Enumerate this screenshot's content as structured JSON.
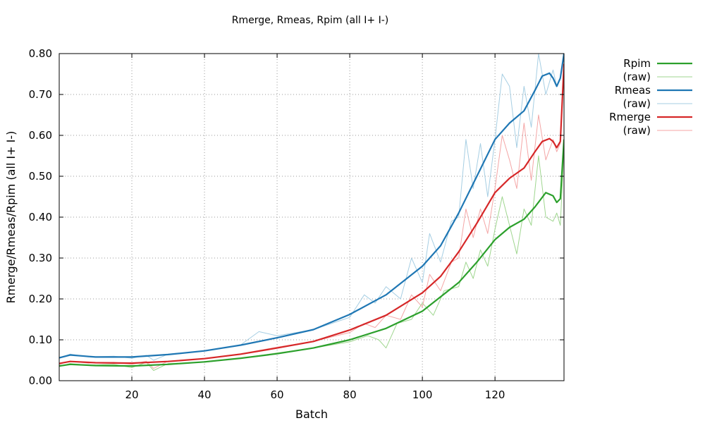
{
  "chart_data": {
    "type": "line",
    "title": "Rmerge, Rmeas, Rpim (all I+  I-)",
    "xlabel": "Batch",
    "ylabel": "Rmerge/Rmeas/Rpim (all I+  I-)",
    "xlim": [
      0,
      139
    ],
    "ylim": [
      0,
      0.8
    ],
    "xticks": [
      20,
      40,
      60,
      80,
      100,
      120
    ],
    "yticks": [
      "0.00",
      "0.10",
      "0.20",
      "0.30",
      "0.40",
      "0.50",
      "0.60",
      "0.70",
      "0.80"
    ],
    "grid": true,
    "legend_position": "outside-top-right",
    "series": [
      {
        "name": "Rpim",
        "kind": "smooth",
        "color": "#2ca02c",
        "x": [
          0,
          3,
          10,
          20,
          30,
          40,
          50,
          60,
          70,
          80,
          90,
          100,
          110,
          115,
          120,
          124,
          128,
          131,
          134,
          136,
          137,
          138,
          139
        ],
        "y": [
          0.036,
          0.04,
          0.037,
          0.036,
          0.04,
          0.046,
          0.055,
          0.066,
          0.08,
          0.1,
          0.128,
          0.17,
          0.24,
          0.29,
          0.345,
          0.375,
          0.395,
          0.425,
          0.46,
          0.452,
          0.436,
          0.445,
          0.59
        ]
      },
      {
        "name": "(raw)",
        "kind": "raw",
        "color": "#9fd68f",
        "x": [
          0,
          3,
          8,
          15,
          20,
          24,
          26,
          30,
          40,
          50,
          60,
          70,
          80,
          85,
          88,
          90,
          93,
          97,
          100,
          103,
          106,
          110,
          112,
          114,
          116,
          118,
          120,
          122,
          124,
          126,
          128,
          130,
          132,
          134,
          136,
          137,
          138,
          139
        ],
        "y": [
          0.035,
          0.042,
          0.038,
          0.04,
          0.032,
          0.045,
          0.025,
          0.042,
          0.045,
          0.055,
          0.068,
          0.08,
          0.095,
          0.11,
          0.1,
          0.08,
          0.14,
          0.15,
          0.19,
          0.16,
          0.22,
          0.23,
          0.29,
          0.25,
          0.32,
          0.28,
          0.37,
          0.45,
          0.38,
          0.31,
          0.42,
          0.38,
          0.55,
          0.4,
          0.39,
          0.41,
          0.38,
          0.57
        ]
      },
      {
        "name": "Rmeas",
        "kind": "smooth",
        "color": "#1f77b4",
        "x": [
          0,
          3,
          10,
          20,
          30,
          40,
          50,
          60,
          70,
          80,
          90,
          100,
          105,
          110,
          115,
          120,
          124,
          128,
          131,
          133,
          135,
          136,
          137,
          138,
          139
        ],
        "y": [
          0.056,
          0.063,
          0.058,
          0.058,
          0.064,
          0.073,
          0.087,
          0.105,
          0.125,
          0.162,
          0.21,
          0.28,
          0.33,
          0.41,
          0.5,
          0.59,
          0.63,
          0.66,
          0.71,
          0.745,
          0.752,
          0.74,
          0.72,
          0.74,
          0.8
        ]
      },
      {
        "name": "(raw)",
        "kind": "raw",
        "color": "#a6cee3",
        "x": [
          0,
          3,
          8,
          15,
          20,
          24,
          26,
          30,
          40,
          50,
          55,
          60,
          70,
          80,
          84,
          87,
          90,
          94,
          97,
          100,
          102,
          105,
          108,
          110,
          112,
          114,
          116,
          118,
          120,
          122,
          124,
          126,
          128,
          130,
          132,
          134,
          136,
          137,
          138,
          139
        ],
        "y": [
          0.055,
          0.065,
          0.058,
          0.06,
          0.055,
          0.062,
          0.05,
          0.065,
          0.072,
          0.088,
          0.12,
          0.11,
          0.125,
          0.155,
          0.21,
          0.19,
          0.23,
          0.2,
          0.3,
          0.24,
          0.36,
          0.29,
          0.39,
          0.4,
          0.59,
          0.47,
          0.58,
          0.45,
          0.59,
          0.75,
          0.72,
          0.57,
          0.72,
          0.62,
          0.8,
          0.7,
          0.76,
          0.72,
          0.74,
          0.8
        ]
      },
      {
        "name": "Rmerge",
        "kind": "smooth",
        "color": "#d62728",
        "x": [
          0,
          3,
          10,
          20,
          30,
          40,
          50,
          60,
          70,
          80,
          90,
          100,
          105,
          110,
          115,
          120,
          124,
          128,
          131,
          133,
          135,
          136,
          137,
          138,
          139
        ],
        "y": [
          0.042,
          0.047,
          0.044,
          0.043,
          0.047,
          0.054,
          0.065,
          0.08,
          0.096,
          0.124,
          0.16,
          0.215,
          0.255,
          0.315,
          0.385,
          0.46,
          0.495,
          0.52,
          0.56,
          0.585,
          0.592,
          0.585,
          0.57,
          0.585,
          0.775
        ]
      },
      {
        "name": "(raw)",
        "kind": "raw",
        "color": "#f4a6a6",
        "x": [
          0,
          3,
          8,
          15,
          20,
          24,
          26,
          30,
          40,
          50,
          60,
          70,
          80,
          84,
          87,
          90,
          94,
          97,
          100,
          102,
          105,
          108,
          110,
          112,
          114,
          116,
          118,
          120,
          122,
          124,
          126,
          128,
          130,
          132,
          134,
          136,
          137,
          138,
          139
        ],
        "y": [
          0.04,
          0.048,
          0.043,
          0.045,
          0.04,
          0.048,
          0.03,
          0.048,
          0.054,
          0.066,
          0.082,
          0.096,
          0.118,
          0.14,
          0.13,
          0.16,
          0.15,
          0.21,
          0.18,
          0.26,
          0.22,
          0.29,
          0.3,
          0.42,
          0.35,
          0.42,
          0.36,
          0.47,
          0.6,
          0.54,
          0.47,
          0.63,
          0.49,
          0.65,
          0.54,
          0.59,
          0.56,
          0.58,
          0.77
        ]
      }
    ]
  }
}
